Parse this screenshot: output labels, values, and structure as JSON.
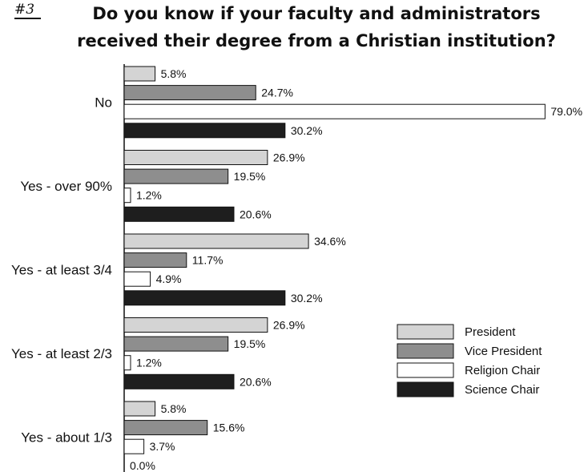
{
  "question_number": "#3",
  "title": "Do you know if your faculty and administrators received their degree from a Christian institution?",
  "colors": {
    "President": "#d4d4d4",
    "Vice President": "#8e8e8e",
    "Religion Chair": "#ffffff",
    "Science Chair": "#1e1e1e"
  },
  "chart_data": {
    "type": "bar",
    "orientation": "horizontal",
    "categories": [
      "No",
      "Yes - over 90%",
      "Yes - at least 3/4",
      "Yes - at least 2/3",
      "Yes - about 1/3"
    ],
    "series": [
      {
        "name": "President",
        "values": [
          5.8,
          26.9,
          34.6,
          26.9,
          5.8
        ]
      },
      {
        "name": "Vice President",
        "values": [
          24.7,
          19.5,
          11.7,
          19.5,
          15.6
        ]
      },
      {
        "name": "Religion Chair",
        "values": [
          79.0,
          1.2,
          4.9,
          1.2,
          3.7
        ]
      },
      {
        "name": "Science Chair",
        "values": [
          30.2,
          20.6,
          30.2,
          20.6,
          0.0
        ]
      }
    ],
    "value_format": "percent_1dp",
    "xlim": [
      0,
      100
    ],
    "legend_position": "right"
  }
}
